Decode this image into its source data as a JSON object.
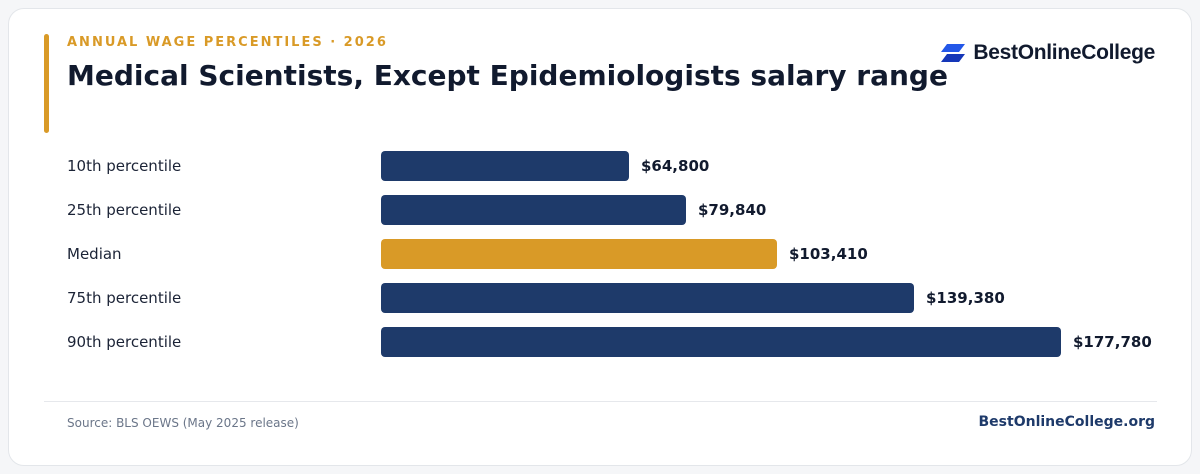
{
  "header": {
    "eyebrow": "ANNUAL WAGE PERCENTILES · 2026",
    "title": "Medical Scientists, Except Epidemiologists salary range"
  },
  "brand": {
    "logo_text": "BestOnlineCollege",
    "logo_icon": "stacked-parallelogram-icon",
    "footer_site": "BestOnlineCollege.org"
  },
  "footer": {
    "source": "Source: BLS OEWS (May 2025 release)"
  },
  "colors": {
    "primary_bar": "#1e3a6a",
    "highlight_bar": "#d99a27",
    "accent": "#d99a27",
    "logo_blue": "#2357e8",
    "logo_dark_blue": "#1537b8"
  },
  "chart_data": {
    "type": "bar",
    "orientation": "horizontal",
    "categories": [
      "10th percentile",
      "25th percentile",
      "Median",
      "75th percentile",
      "90th percentile"
    ],
    "values": [
      64800,
      79840,
      103410,
      139380,
      177780
    ],
    "value_labels": [
      "$64,800",
      "$79,840",
      "$103,410",
      "$139,380",
      "$177,780"
    ],
    "highlight_index": 2,
    "xlim": [
      0,
      177780
    ],
    "grid": false,
    "legend": "none"
  }
}
